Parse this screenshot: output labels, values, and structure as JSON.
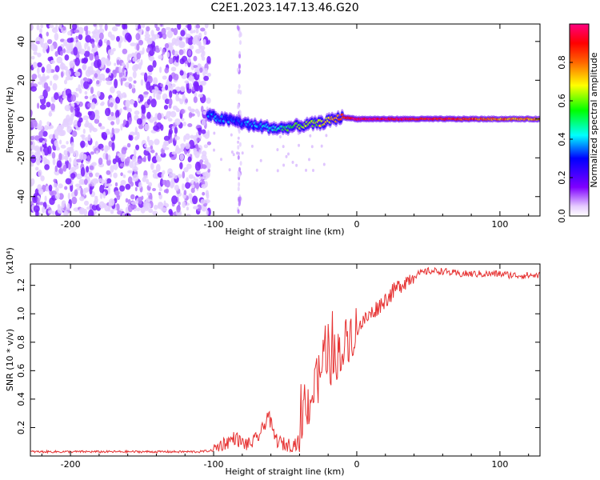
{
  "title": "C2E1.2023.147.13.46.G20",
  "chart_data": [
    {
      "type": "heatmap",
      "xlabel": "Height of straight line (km)",
      "ylabel": "Frequency (Hz)",
      "xlim": [
        -228,
        128
      ],
      "ylim": [
        -50,
        49
      ],
      "xticks": [
        -200,
        -100,
        0,
        100
      ],
      "yticks": [
        -40,
        -20,
        0,
        20,
        40
      ],
      "colorbar": {
        "label": "Normalized spectral amplitude",
        "range": [
          0,
          1
        ],
        "ticks": [
          "0.0",
          "0.2",
          "0.4",
          "0.6",
          "0.8"
        ],
        "colors": [
          "#ffffff",
          "#7f00ff",
          "#0000ff",
          "#00ffff",
          "#00ff00",
          "#ffff00",
          "#ff0000",
          "#ff0080"
        ]
      },
      "noise_region_x": [
        -228,
        -103
      ],
      "signal_track": {
        "x": [
          -104,
          -95,
          -85,
          -75,
          -65,
          -55,
          -45,
          -35,
          -25,
          -15,
          -10,
          0,
          20,
          40,
          60,
          80,
          100,
          128
        ],
        "freq": [
          2,
          0,
          -1,
          -3,
          -4,
          -5,
          -4,
          -3,
          -2,
          0,
          1,
          0,
          0,
          0,
          0,
          0,
          0,
          0
        ],
        "amplitude": [
          0.35,
          0.35,
          0.3,
          0.35,
          0.4,
          0.45,
          0.55,
          0.6,
          0.65,
          0.75,
          0.85,
          0.95,
          0.95,
          0.9,
          0.9,
          0.85,
          0.8,
          0.75
        ]
      }
    },
    {
      "type": "line",
      "xlabel": "Height of straight line (km)",
      "ylabel": "SNR (10 * v/v)",
      "yscale_label": "(x10⁴)",
      "xlim": [
        -228,
        128
      ],
      "ylim": [
        0,
        1.35
      ],
      "xticks": [
        -200,
        -100,
        0,
        100
      ],
      "yticks": [
        "0.2",
        "0.4",
        "0.6",
        "0.8",
        "1.0",
        "1.2"
      ],
      "color": "#e63232",
      "series": [
        {
          "x": [
            -228,
            -200,
            -150,
            -110,
            -100,
            -95,
            -90,
            -85,
            -80,
            -75,
            -70,
            -65,
            -62,
            -58,
            -55,
            -50,
            -45,
            -40,
            -38,
            -35,
            -30,
            -25,
            -22,
            -20,
            -15,
            -10,
            -5,
            0,
            10,
            20,
            30,
            40,
            50,
            60,
            70,
            80,
            90,
            100,
            110,
            120,
            128
          ],
          "y": [
            0.03,
            0.03,
            0.03,
            0.03,
            0.04,
            0.08,
            0.1,
            0.13,
            0.09,
            0.08,
            0.12,
            0.2,
            0.3,
            0.15,
            0.1,
            0.08,
            0.08,
            0.1,
            0.25,
            0.35,
            0.45,
            0.6,
            0.8,
            0.65,
            0.7,
            0.75,
            0.85,
            0.9,
            1.0,
            1.1,
            1.2,
            1.27,
            1.3,
            1.3,
            1.28,
            1.28,
            1.28,
            1.28,
            1.27,
            1.27,
            1.27
          ]
        }
      ]
    }
  ]
}
